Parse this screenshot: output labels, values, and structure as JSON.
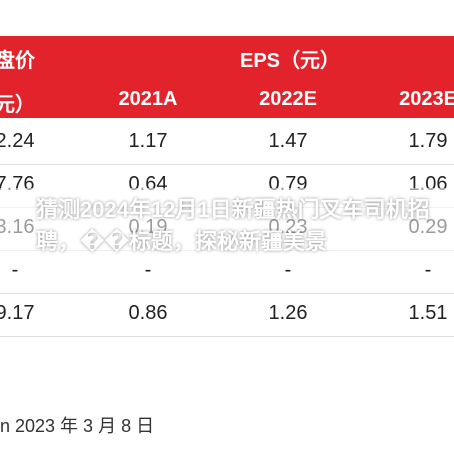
{
  "header": {
    "label_top": "盘价",
    "group": "EPS（元）",
    "label_bottom": "元）",
    "years": [
      "2021A",
      "2022E",
      "2023E"
    ]
  },
  "rows": [
    [
      "2.24",
      "1.17",
      "1.47",
      "1.79"
    ],
    [
      "7.76",
      "0.64",
      "0.79",
      "1.06"
    ],
    [
      "3.16",
      "0.19",
      "0.23",
      "0.29"
    ],
    [
      "-",
      "-",
      "-",
      "-"
    ],
    [
      "9.17",
      "0.86",
      "1.26",
      "1.51"
    ]
  ],
  "source": "n 2023 年 3 月 8 日",
  "overlay_title": "猜测2024年12月1日新疆热门叉车司机招聘，��标题，探秘新疆美景"
}
